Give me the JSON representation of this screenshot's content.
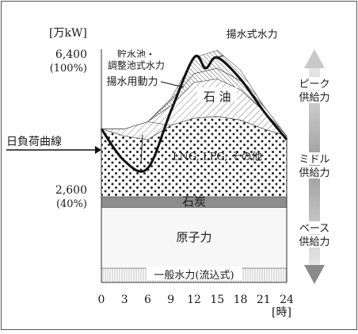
{
  "chart_data": {
    "type": "area",
    "title": "",
    "ylabel": "[万kW]",
    "xlabel": "[時]",
    "x": [
      0,
      3,
      6,
      9,
      12,
      15,
      18,
      21,
      24
    ],
    "x_ticks": [
      "0",
      "3",
      "6",
      "9",
      "12",
      "15",
      "18",
      "21",
      "24"
    ],
    "y_reference_labels": [
      {
        "value": 6400,
        "label": "6,400",
        "sub": "(100%)"
      },
      {
        "value": 2600,
        "label": "2,600",
        "sub": "(40%)"
      }
    ],
    "ylim": [
      0,
      6800
    ],
    "curve_name": "日負荷曲線",
    "series": [
      {
        "name": "一般水力(流込式)",
        "values": [
          400,
          400,
          400,
          400,
          400,
          400,
          400,
          400,
          400
        ]
      },
      {
        "name": "原子力",
        "values": [
          1700,
          1700,
          1700,
          1700,
          1700,
          1700,
          1700,
          1700,
          1700
        ]
      },
      {
        "name": "石炭",
        "values": [
          300,
          300,
          300,
          300,
          300,
          300,
          300,
          300,
          300
        ]
      },
      {
        "name": "LNG, LPG, その他",
        "values": [
          1900,
          1700,
          1600,
          2000,
          2200,
          2250,
          2150,
          1900,
          1700
        ]
      },
      {
        "name": "揚水用動力",
        "values": [
          0,
          200,
          500,
          0,
          0,
          0,
          0,
          0,
          0
        ]
      },
      {
        "name": "石 油",
        "values": [
          0,
          0,
          0,
          550,
          1000,
          1050,
          850,
          500,
          0
        ]
      },
      {
        "name": "貯水池・\n調整池式水力",
        "values": [
          0,
          0,
          0,
          150,
          250,
          300,
          250,
          150,
          0
        ]
      },
      {
        "name": "揚水式水力",
        "values": [
          0,
          0,
          0,
          50,
          450,
          500,
          300,
          0,
          0
        ]
      }
    ],
    "load_curve": [
      {
        "x": 0,
        "y": 4300
      },
      {
        "x": 3,
        "y": 3400
      },
      {
        "x": 6,
        "y": 3200
      },
      {
        "x": 9,
        "y": 4800
      },
      {
        "x": 12,
        "y": 6300
      },
      {
        "x": 13.5,
        "y": 6000
      },
      {
        "x": 15,
        "y": 6300
      },
      {
        "x": 18,
        "y": 5700
      },
      {
        "x": 21,
        "y": 4800
      },
      {
        "x": 24,
        "y": 4000
      }
    ],
    "supply_bar": [
      {
        "label": "ピーク\n供給力"
      },
      {
        "label": "ミドル\n供給力"
      },
      {
        "label": "ベース\n供給力"
      }
    ]
  }
}
